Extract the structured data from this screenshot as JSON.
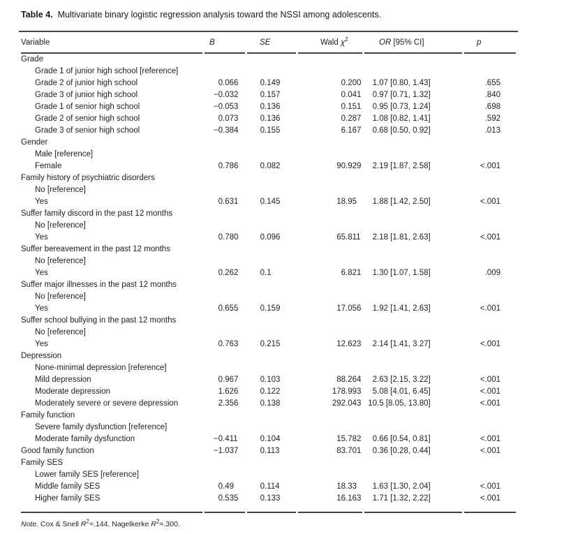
{
  "title": {
    "label": "Table 4.",
    "text": "Multivariate binary logistic regression analysis toward the NSSI among adolescents."
  },
  "columns": [
    {
      "key": "variable",
      "parts": [
        {
          "t": "Variable",
          "i": false
        }
      ]
    },
    {
      "key": "b",
      "parts": [
        {
          "t": "B",
          "i": true
        }
      ]
    },
    {
      "key": "se",
      "parts": [
        {
          "t": "SE",
          "i": true
        }
      ]
    },
    {
      "key": "wald",
      "parts": [
        {
          "t": "Wald ",
          "i": false
        },
        {
          "t": "χ",
          "i": true
        },
        {
          "t": "2",
          "sup": true
        }
      ]
    },
    {
      "key": "or",
      "parts": [
        {
          "t": "OR",
          "i": true
        },
        {
          "t": " [95% CI]",
          "i": false
        }
      ]
    },
    {
      "key": "p",
      "parts": [
        {
          "t": "p",
          "i": true
        }
      ]
    }
  ],
  "rows": [
    {
      "label": "Grade",
      "indent": false,
      "b": "",
      "se": "",
      "wald": "",
      "or": "",
      "p": ""
    },
    {
      "label": "Grade 1 of junior high school [reference]",
      "indent": true,
      "b": "",
      "se": "",
      "wald": "",
      "or": "",
      "p": ""
    },
    {
      "label": "Grade 2 of junior high school",
      "indent": true,
      "b": "0.066",
      "se": "0.149",
      "wald": "0.200",
      "or": "1.07 [0.80, 1.43]",
      "p": ".655"
    },
    {
      "label": "Grade 3 of junior high school",
      "indent": true,
      "b": "−0.032",
      "se": "0.157",
      "wald": "0.041",
      "or": "0.97 [0.71, 1.32]",
      "p": ".840"
    },
    {
      "label": "Grade 1 of senior high school",
      "indent": true,
      "b": "−0.053",
      "se": "0.136",
      "wald": "0.151",
      "or": "0.95 [0.73, 1.24]",
      "p": ".698"
    },
    {
      "label": "Grade 2 of senior high school",
      "indent": true,
      "b": "0.073",
      "se": "0.136",
      "wald": "0.287",
      "or": "1.08 [0.82, 1.41]",
      "p": ".592"
    },
    {
      "label": "Grade 3 of senior high school",
      "indent": true,
      "b": "−0.384",
      "se": "0.155",
      "wald": "6.167",
      "or": "0.68 [0.50, 0.92]",
      "p": ".013"
    },
    {
      "label": "Gender",
      "indent": false,
      "b": "",
      "se": "",
      "wald": "",
      "or": "",
      "p": ""
    },
    {
      "label": "Male [reference]",
      "indent": true,
      "b": "",
      "se": "",
      "wald": "",
      "or": "",
      "p": ""
    },
    {
      "label": "Female",
      "indent": true,
      "b": "0.786",
      "se": "0.082",
      "wald": "90.929",
      "or": "2.19 [1.87, 2.58]",
      "p": "<.001"
    },
    {
      "label": "Family history of psychiatric disorders",
      "indent": false,
      "b": "",
      "se": "",
      "wald": "",
      "or": "",
      "p": ""
    },
    {
      "label": "No [reference]",
      "indent": true,
      "b": "",
      "se": "",
      "wald": "",
      "or": "",
      "p": ""
    },
    {
      "label": "Yes",
      "indent": true,
      "b": "0.631",
      "se": "0.145",
      "wald": "18.95",
      "or": "1.88 [1.42, 2.50]",
      "p": "<.001"
    },
    {
      "label": "Suffer family discord in the past 12 months",
      "indent": false,
      "b": "",
      "se": "",
      "wald": "",
      "or": "",
      "p": ""
    },
    {
      "label": "No [reference]",
      "indent": true,
      "b": "",
      "se": "",
      "wald": "",
      "or": "",
      "p": ""
    },
    {
      "label": "Yes",
      "indent": true,
      "b": "0.780",
      "se": "0.096",
      "wald": "65.811",
      "or": "2.18 [1.81, 2.63]",
      "p": "<.001"
    },
    {
      "label": "Suffer bereavement in the past 12 months",
      "indent": false,
      "b": "",
      "se": "",
      "wald": "",
      "or": "",
      "p": ""
    },
    {
      "label": "No [reference]",
      "indent": true,
      "b": "",
      "se": "",
      "wald": "",
      "or": "",
      "p": ""
    },
    {
      "label": "Yes",
      "indent": true,
      "b": "0.262",
      "se": "0.1",
      "wald": "6.821",
      "or": "1.30 [1.07, 1.58]",
      "p": ".009"
    },
    {
      "label": "Suffer major illnesses in the past 12 months",
      "indent": false,
      "b": "",
      "se": "",
      "wald": "",
      "or": "",
      "p": ""
    },
    {
      "label": "No [reference]",
      "indent": true,
      "b": "",
      "se": "",
      "wald": "",
      "or": "",
      "p": ""
    },
    {
      "label": "Yes",
      "indent": true,
      "b": "0.655",
      "se": "0.159",
      "wald": "17.056",
      "or": "1.92 [1.41, 2.63]",
      "p": "<.001"
    },
    {
      "label": "Suffer school bullying in the past 12 months",
      "indent": false,
      "b": "",
      "se": "",
      "wald": "",
      "or": "",
      "p": ""
    },
    {
      "label": "No [reference]",
      "indent": true,
      "b": "",
      "se": "",
      "wald": "",
      "or": "",
      "p": ""
    },
    {
      "label": "Yes",
      "indent": true,
      "b": "0.763",
      "se": "0.215",
      "wald": "12.623",
      "or": "2.14 [1.41, 3.27]",
      "p": "<.001"
    },
    {
      "label": "Depression",
      "indent": false,
      "b": "",
      "se": "",
      "wald": "",
      "or": "",
      "p": ""
    },
    {
      "label": "None-minimal depression [reference]",
      "indent": true,
      "b": "",
      "se": "",
      "wald": "",
      "or": "",
      "p": ""
    },
    {
      "label": "Mild depression",
      "indent": true,
      "b": "0.967",
      "se": "0.103",
      "wald": "88.264",
      "or": "2.63 [2.15, 3.22]",
      "p": "<.001"
    },
    {
      "label": "Moderate depression",
      "indent": true,
      "b": "1.626",
      "se": "0.122",
      "wald": "178.993",
      "or": "5.08 [4.01, 6.45]",
      "p": "<.001"
    },
    {
      "label": "Moderately severe or severe depression",
      "indent": true,
      "b": "2.356",
      "se": "0.138",
      "wald": "292.043",
      "or": "10.5 [8.05, 13.80]",
      "p": "<.001"
    },
    {
      "label": "Family function",
      "indent": false,
      "b": "",
      "se": "",
      "wald": "",
      "or": "",
      "p": ""
    },
    {
      "label": "Severe family dysfunction [reference]",
      "indent": true,
      "b": "",
      "se": "",
      "wald": "",
      "or": "",
      "p": ""
    },
    {
      "label": "Moderate family dysfunction",
      "indent": true,
      "b": "−0.411",
      "se": "0.104",
      "wald": "15.782",
      "or": "0.66 [0.54, 0.81]",
      "p": "<.001"
    },
    {
      "label": "Good family function",
      "indent": false,
      "b": "−1.037",
      "se": "0.113",
      "wald": "83.701",
      "or": "0.36 [0.28, 0.44]",
      "p": "<.001"
    },
    {
      "label": "Family SES",
      "indent": false,
      "b": "",
      "se": "",
      "wald": "",
      "or": "",
      "p": ""
    },
    {
      "label": "Lower family SES [reference]",
      "indent": true,
      "b": "",
      "se": "",
      "wald": "",
      "or": "",
      "p": ""
    },
    {
      "label": "Middle family SES",
      "indent": true,
      "b": "0.49",
      "se": "0.114",
      "wald": "18.33",
      "or": "1.63 [1.30, 2.04]",
      "p": "<.001"
    },
    {
      "label": "Higher family SES",
      "indent": true,
      "b": "0.535",
      "se": "0.133",
      "wald": "16.163",
      "or": "1.71 [1.32, 2.22]",
      "p": "<.001"
    }
  ],
  "note": {
    "label": "Note.",
    "parts": [
      {
        "t": " Cox & Snell ",
        "i": false
      },
      {
        "t": "R",
        "i": true
      },
      {
        "t": "2",
        "sup": true
      },
      {
        "t": "=.144, Nagelkerke ",
        "i": false
      },
      {
        "t": "R",
        "i": true
      },
      {
        "t": "2",
        "sup": true
      },
      {
        "t": "=.300.",
        "i": false
      }
    ]
  },
  "colors": {
    "text": "#1e1e1e",
    "rule": "#414141",
    "background": "#ffffff"
  }
}
